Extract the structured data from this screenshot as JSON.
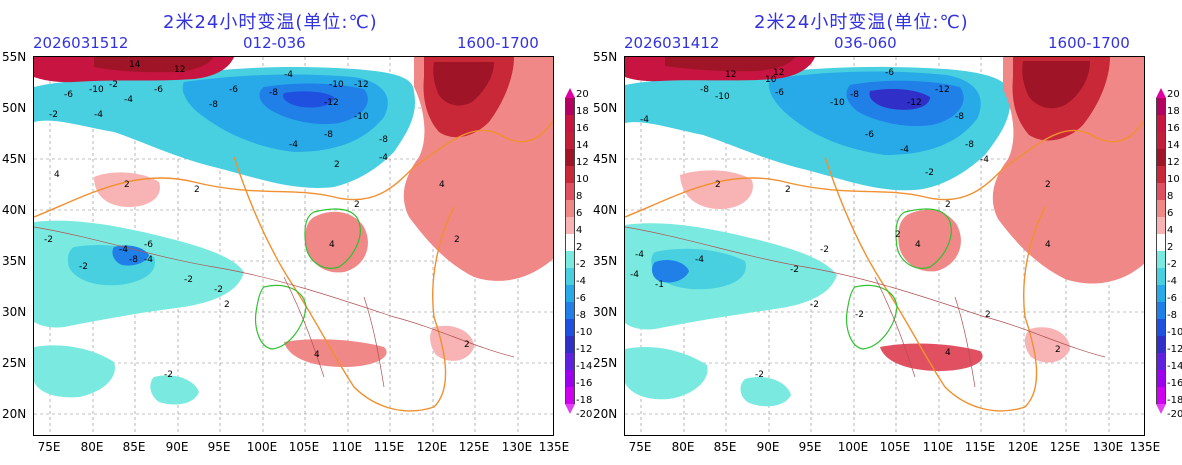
{
  "panels": [
    {
      "title": "2米24小时变温(单位:℃)",
      "date": "2026031512",
      "range": "012-036",
      "time": "1600-1700"
    },
    {
      "title": "2米24小时变温(单位:℃)",
      "date": "2026031412",
      "range": "036-060",
      "time": "1600-1700"
    }
  ],
  "lat_labels": [
    "55N",
    "50N",
    "45N",
    "40N",
    "35N",
    "30N",
    "25N",
    "20N"
  ],
  "lon_labels": [
    "75E",
    "80E",
    "85E",
    "90E",
    "95E",
    "100E",
    "105E",
    "110E",
    "115E",
    "120E",
    "125E",
    "130E",
    "135E"
  ],
  "colorbar": {
    "labels": [
      "20",
      "18",
      "16",
      "14",
      "12",
      "10",
      "8",
      "6",
      "4",
      "2",
      "-2",
      "-4",
      "-6",
      "-8",
      "-10",
      "-12",
      "-14",
      "-16",
      "-18",
      "-20"
    ],
    "colors": [
      "#e000a0",
      "#b40060",
      "#c81440",
      "#c21e3a",
      "#a01428",
      "#c82838",
      "#e05060",
      "#f08888",
      "#f8b4b4",
      "#ffffff",
      "#7aeae0",
      "#48d0e0",
      "#28aae8",
      "#2080e8",
      "#2050e0",
      "#3030c8",
      "#6020e0",
      "#a000f0",
      "#d000f0",
      "#e040f0"
    ]
  },
  "contour_labels": {
    "panel1": [
      "14",
      "-6",
      "-10",
      "-2",
      "-6",
      "-4",
      "12",
      "-4",
      "-10",
      "-12",
      "-12",
      "-8",
      "-8",
      "-10",
      "-4",
      "-8",
      "-4",
      "2",
      "4",
      "-2",
      "-4",
      "-6",
      "-8",
      "2",
      "4",
      "-2",
      "-2",
      "-4",
      "-2",
      "2",
      "4",
      "-4",
      "-2",
      "2",
      "4",
      "-6",
      "-8",
      "-2",
      "2",
      "2",
      "2"
    ],
    "panel2": [
      "12",
      "-8",
      "-10",
      "-6",
      "-4",
      "12",
      "10",
      "-8",
      "-12",
      "-10",
      "-12",
      "-6",
      "-8",
      "-6",
      "-4",
      "-8",
      "-4",
      "-2",
      "2",
      "4",
      "-2",
      "-4",
      "-2",
      "2",
      "4",
      "-4",
      "-1",
      "-2",
      "4",
      "2",
      "2",
      "-4",
      "-2",
      "2",
      "2",
      "2",
      "-2"
    ]
  }
}
